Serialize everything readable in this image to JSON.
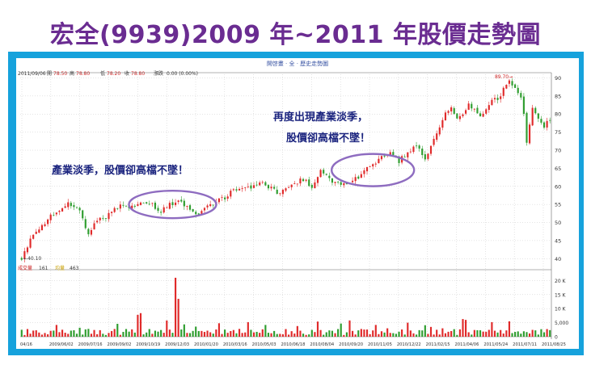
{
  "page": {
    "title": "宏全(9939)2009 年~2011 年股價走勢圖"
  },
  "chart_data": {
    "type": "candlestick",
    "header": {
      "center_text": "開啓畫 · 全 · 歷史走勢圖",
      "date": "2011/09/06",
      "open_label": "開",
      "open_value": "78.50",
      "high_label": "高",
      "high_value": "78.80",
      "low_label": "低",
      "low_value": "78.20",
      "close_label": "收",
      "close_value": "78.80",
      "change_label": "漲跌",
      "change_value": "0.00 (0.00%)"
    },
    "volume_header": {
      "label1": "成交量",
      "value1": "161",
      "label2": "均量",
      "value2": "463"
    },
    "price_axis": {
      "ylim": [
        38.5,
        91
      ],
      "ticks": [
        40,
        45,
        50,
        55,
        60,
        65,
        70,
        75,
        80,
        85,
        90
      ]
    },
    "volume_axis": {
      "ylim": [
        0,
        23000
      ],
      "ticks": [
        "0",
        "5,000",
        "10 K",
        "15 K",
        "20 K"
      ],
      "tick_values": [
        0,
        5000,
        10000,
        15000,
        20000
      ]
    },
    "x_tick_labels": [
      "04/16",
      "2009/06/02",
      "2009/07/16",
      "2009/09/02",
      "2009/10/19",
      "2009/12/03",
      "2010/01/20",
      "2010/03/16",
      "2010/05/03",
      "2010/06/18",
      "2010/08/04",
      "2010/09/20",
      "2010/11/05",
      "2010/12/22",
      "2011/02/15",
      "2011/04/06",
      "2011/05/24",
      "2011/07/11",
      "2011/08/25"
    ],
    "marked_low": "40.10",
    "marked_high": "89.70",
    "price_path": [
      [
        0,
        40.1
      ],
      [
        3,
        45
      ],
      [
        6,
        48
      ],
      [
        9,
        51
      ],
      [
        12,
        53
      ],
      [
        16,
        55
      ],
      [
        20,
        53
      ],
      [
        23,
        47
      ],
      [
        26,
        51
      ],
      [
        30,
        52
      ],
      [
        34,
        55
      ],
      [
        38,
        54
      ],
      [
        41,
        56
      ],
      [
        45,
        55
      ],
      [
        48,
        53
      ],
      [
        51,
        55
      ],
      [
        54,
        56
      ],
      [
        57,
        54
      ],
      [
        60,
        52
      ],
      [
        63,
        54
      ],
      [
        67,
        56
      ],
      [
        70,
        57
      ],
      [
        73,
        59
      ],
      [
        76,
        60
      ],
      [
        79,
        60
      ],
      [
        82,
        61
      ],
      [
        85,
        60
      ],
      [
        88,
        58
      ],
      [
        91,
        60
      ],
      [
        94,
        61
      ],
      [
        97,
        62
      ],
      [
        100,
        60
      ],
      [
        103,
        64
      ],
      [
        106,
        62
      ],
      [
        109,
        61
      ],
      [
        112,
        61
      ],
      [
        115,
        62
      ],
      [
        118,
        64
      ],
      [
        121,
        66
      ],
      [
        124,
        68
      ],
      [
        127,
        70
      ],
      [
        130,
        67
      ],
      [
        133,
        69
      ],
      [
        136,
        71
      ],
      [
        139,
        68
      ],
      [
        142,
        73
      ],
      [
        145,
        79
      ],
      [
        148,
        82
      ],
      [
        150,
        79
      ],
      [
        152,
        80
      ],
      [
        154,
        83
      ],
      [
        156,
        81
      ],
      [
        158,
        79
      ],
      [
        160,
        81
      ],
      [
        162,
        84
      ],
      [
        164,
        84
      ],
      [
        166,
        87
      ],
      [
        168,
        89.7
      ],
      [
        170,
        87
      ],
      [
        172,
        84
      ],
      [
        173,
        80
      ],
      [
        174,
        72
      ],
      [
        175,
        77
      ],
      [
        176,
        82
      ],
      [
        178,
        79
      ],
      [
        180,
        76
      ],
      [
        182,
        78.8
      ]
    ],
    "volume_spikes": [
      [
        12,
        4200
      ],
      [
        20,
        3200
      ],
      [
        25,
        2400
      ],
      [
        33,
        4600
      ],
      [
        40,
        7800
      ],
      [
        41,
        8400
      ],
      [
        50,
        5800
      ],
      [
        53,
        21000
      ],
      [
        54,
        13500
      ],
      [
        56,
        4400
      ],
      [
        60,
        3600
      ],
      [
        68,
        4800
      ],
      [
        78,
        5200
      ],
      [
        84,
        4200
      ],
      [
        95,
        3800
      ],
      [
        102,
        5400
      ],
      [
        110,
        4700
      ],
      [
        113,
        5800
      ],
      [
        122,
        4200
      ],
      [
        126,
        3000
      ],
      [
        133,
        5000
      ],
      [
        139,
        4100
      ],
      [
        141,
        3500
      ],
      [
        145,
        3000
      ],
      [
        152,
        6300
      ],
      [
        153,
        6000
      ],
      [
        162,
        5200
      ],
      [
        168,
        5500
      ]
    ],
    "annotations": [
      {
        "id": "annotation-1",
        "text": "產業淡季，股價卻高檔不墜！"
      },
      {
        "id": "annotation-2",
        "line1": "再度出現產業淡季，",
        "line2": "股價卻高檔不墜！"
      }
    ],
    "colors": {
      "title": "#6a2c91",
      "frame": "#16a2dc",
      "up": "#e02a2a",
      "down": "#2f9d2f",
      "ellipse": "#8e6cc0",
      "annotation": "#1a237e",
      "axis": "#666666",
      "grid": "#c8c8c8"
    }
  }
}
